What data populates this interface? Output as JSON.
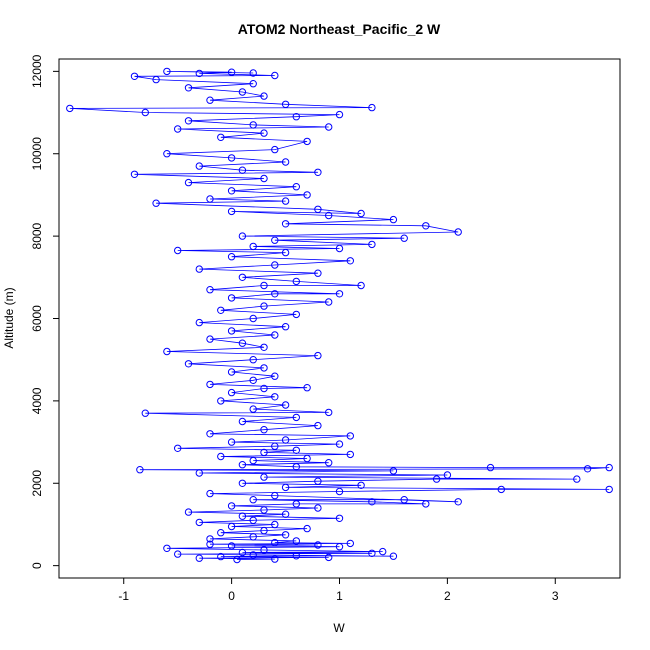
{
  "chart_data": {
    "type": "scatter",
    "title": "ATOM2 Northeast_Pacific_2 W",
    "xlabel": "W",
    "ylabel": "Altitude (m)",
    "xlim": [
      -1.6,
      3.6
    ],
    "ylim": [
      -300,
      12300
    ],
    "x_ticks": [
      -1,
      0,
      1,
      2,
      3
    ],
    "x_tick_labels": [
      "-1",
      "0",
      "1",
      "2",
      "3"
    ],
    "y_ticks": [
      0,
      2000,
      4000,
      6000,
      8000,
      10000,
      12000
    ],
    "y_tick_labels": [
      "0",
      "2000",
      "4000",
      "6000",
      "8000",
      "10000",
      "12000"
    ],
    "grid": false,
    "legend": "none",
    "series": [
      {
        "color": "#0000ff",
        "marker": "open-circle",
        "connected": true,
        "points": [
          [
            0.05,
            150
          ],
          [
            0.4,
            160
          ],
          [
            -0.3,
            180
          ],
          [
            0.9,
            200
          ],
          [
            -0.1,
            220
          ],
          [
            0.6,
            240
          ],
          [
            1.5,
            230
          ],
          [
            0.2,
            260
          ],
          [
            -0.5,
            280
          ],
          [
            1.3,
            300
          ],
          [
            0.1,
            320
          ],
          [
            1.4,
            340
          ],
          [
            0.3,
            380
          ],
          [
            -0.6,
            420
          ],
          [
            1.0,
            460
          ],
          [
            0.0,
            480
          ],
          [
            0.8,
            500
          ],
          [
            -0.2,
            520
          ],
          [
            1.1,
            540
          ],
          [
            0.4,
            560
          ],
          [
            0.6,
            600
          ],
          [
            -0.2,
            650
          ],
          [
            0.2,
            700
          ],
          [
            0.5,
            750
          ],
          [
            -0.1,
            800
          ],
          [
            0.3,
            850
          ],
          [
            0.7,
            900
          ],
          [
            0.0,
            950
          ],
          [
            0.4,
            1000
          ],
          [
            -0.3,
            1050
          ],
          [
            0.2,
            1100
          ],
          [
            1.0,
            1150
          ],
          [
            0.1,
            1200
          ],
          [
            0.5,
            1250
          ],
          [
            -0.4,
            1300
          ],
          [
            0.3,
            1350
          ],
          [
            0.8,
            1400
          ],
          [
            0.0,
            1450
          ],
          [
            0.6,
            1500
          ],
          [
            1.8,
            1500
          ],
          [
            1.3,
            1550
          ],
          [
            0.2,
            1600
          ],
          [
            1.6,
            1600
          ],
          [
            2.1,
            1550
          ],
          [
            0.4,
            1700
          ],
          [
            -0.2,
            1750
          ],
          [
            1.0,
            1800
          ],
          [
            2.5,
            1850
          ],
          [
            3.5,
            1850
          ],
          [
            0.5,
            1900
          ],
          [
            1.2,
            1950
          ],
          [
            0.1,
            2000
          ],
          [
            0.8,
            2050
          ],
          [
            1.9,
            2100
          ],
          [
            3.2,
            2100
          ],
          [
            0.3,
            2150
          ],
          [
            2.0,
            2200
          ],
          [
            -0.3,
            2250
          ],
          [
            1.5,
            2300
          ],
          [
            -0.85,
            2330
          ],
          [
            3.3,
            2350
          ],
          [
            3.5,
            2380
          ],
          [
            2.4,
            2380
          ],
          [
            0.6,
            2400
          ],
          [
            0.1,
            2450
          ],
          [
            0.9,
            2500
          ],
          [
            0.2,
            2550
          ],
          [
            0.7,
            2600
          ],
          [
            -0.1,
            2650
          ],
          [
            1.1,
            2700
          ],
          [
            0.3,
            2750
          ],
          [
            0.6,
            2800
          ],
          [
            -0.5,
            2850
          ],
          [
            0.4,
            2900
          ],
          [
            1.0,
            2950
          ],
          [
            0.0,
            3000
          ],
          [
            0.5,
            3050
          ],
          [
            1.1,
            3150
          ],
          [
            -0.2,
            3200
          ],
          [
            0.3,
            3300
          ],
          [
            0.8,
            3400
          ],
          [
            0.1,
            3500
          ],
          [
            0.6,
            3600
          ],
          [
            -0.8,
            3700
          ],
          [
            0.9,
            3720
          ],
          [
            0.2,
            3800
          ],
          [
            0.5,
            3900
          ],
          [
            -0.1,
            4000
          ],
          [
            0.4,
            4100
          ],
          [
            0.0,
            4200
          ],
          [
            0.3,
            4300
          ],
          [
            0.7,
            4320
          ],
          [
            -0.2,
            4400
          ],
          [
            0.2,
            4500
          ],
          [
            0.4,
            4600
          ],
          [
            0.0,
            4700
          ],
          [
            0.3,
            4800
          ],
          [
            -0.4,
            4900
          ],
          [
            0.2,
            5000
          ],
          [
            0.8,
            5100
          ],
          [
            -0.6,
            5200
          ],
          [
            0.3,
            5300
          ],
          [
            0.1,
            5400
          ],
          [
            -0.2,
            5500
          ],
          [
            0.4,
            5600
          ],
          [
            0.0,
            5700
          ],
          [
            0.5,
            5800
          ],
          [
            -0.3,
            5900
          ],
          [
            0.2,
            6000
          ],
          [
            0.6,
            6100
          ],
          [
            -0.1,
            6200
          ],
          [
            0.3,
            6300
          ],
          [
            0.9,
            6400
          ],
          [
            0.0,
            6500
          ],
          [
            0.4,
            6600
          ],
          [
            1.0,
            6600
          ],
          [
            -0.2,
            6700
          ],
          [
            0.3,
            6800
          ],
          [
            1.2,
            6800
          ],
          [
            0.6,
            6900
          ],
          [
            0.1,
            7000
          ],
          [
            0.8,
            7100
          ],
          [
            -0.3,
            7200
          ],
          [
            0.4,
            7300
          ],
          [
            1.1,
            7400
          ],
          [
            0.0,
            7500
          ],
          [
            0.5,
            7600
          ],
          [
            -0.5,
            7650
          ],
          [
            1.0,
            7700
          ],
          [
            0.2,
            7750
          ],
          [
            1.3,
            7800
          ],
          [
            0.4,
            7900
          ],
          [
            1.6,
            7950
          ],
          [
            0.1,
            8000
          ],
          [
            2.1,
            8100
          ],
          [
            1.8,
            8250
          ],
          [
            0.5,
            8300
          ],
          [
            1.5,
            8400
          ],
          [
            0.9,
            8500
          ],
          [
            0.0,
            8600
          ],
          [
            1.2,
            8550
          ],
          [
            0.8,
            8650
          ],
          [
            -0.7,
            8800
          ],
          [
            0.5,
            8850
          ],
          [
            -0.2,
            8900
          ],
          [
            0.7,
            9000
          ],
          [
            0.0,
            9100
          ],
          [
            0.6,
            9200
          ],
          [
            -0.4,
            9300
          ],
          [
            0.3,
            9400
          ],
          [
            -0.9,
            9500
          ],
          [
            0.8,
            9550
          ],
          [
            0.1,
            9600
          ],
          [
            -0.3,
            9700
          ],
          [
            0.5,
            9800
          ],
          [
            0.0,
            9900
          ],
          [
            -0.6,
            10000
          ],
          [
            0.4,
            10100
          ],
          [
            0.7,
            10300
          ],
          [
            -0.1,
            10400
          ],
          [
            0.3,
            10500
          ],
          [
            -0.5,
            10600
          ],
          [
            0.9,
            10650
          ],
          [
            0.2,
            10700
          ],
          [
            -0.4,
            10800
          ],
          [
            0.6,
            10900
          ],
          [
            1.0,
            10950
          ],
          [
            -0.8,
            11000
          ],
          [
            -1.5,
            11100
          ],
          [
            1.3,
            11120
          ],
          [
            0.5,
            11200
          ],
          [
            -0.2,
            11300
          ],
          [
            0.3,
            11400
          ],
          [
            0.1,
            11500
          ],
          [
            -0.4,
            11600
          ],
          [
            0.2,
            11700
          ],
          [
            -0.7,
            11800
          ],
          [
            -0.9,
            11880
          ],
          [
            0.4,
            11900
          ],
          [
            -0.3,
            11950
          ],
          [
            0.0,
            11980
          ],
          [
            -0.6,
            12000
          ],
          [
            0.2,
            11960
          ]
        ]
      }
    ]
  }
}
